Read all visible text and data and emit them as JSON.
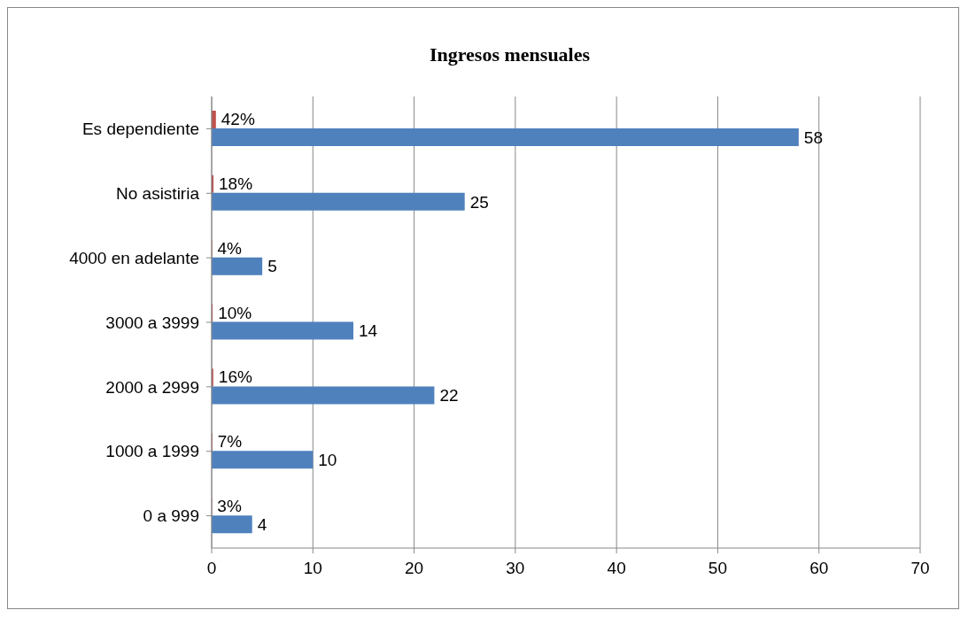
{
  "chart_data": {
    "type": "bar",
    "title": "Ingresos mensuales",
    "orientation": "horizontal",
    "categories": [
      "Es dependiente",
      "No asistiria",
      "4000 en adelante",
      "3000 a 3999",
      "2000 a 2999",
      "1000 a 1999",
      "0 a 999"
    ],
    "series": [
      {
        "color": "#c0504d",
        "values": [
          0.42,
          0.18,
          0.04,
          0.1,
          0.16,
          0.07,
          0.03
        ],
        "value_labels": [
          "42%",
          "18%",
          "4%",
          "10%",
          "16%",
          "7%",
          "3%"
        ]
      },
      {
        "color": "#4f81bd",
        "values": [
          58,
          25,
          5,
          14,
          22,
          10,
          4
        ],
        "data_labels": true
      }
    ],
    "xlim": [
      0,
      70
    ],
    "xticks": [
      0,
      10,
      20,
      30,
      40,
      50,
      60,
      70
    ],
    "grid": "x",
    "legend": false
  }
}
